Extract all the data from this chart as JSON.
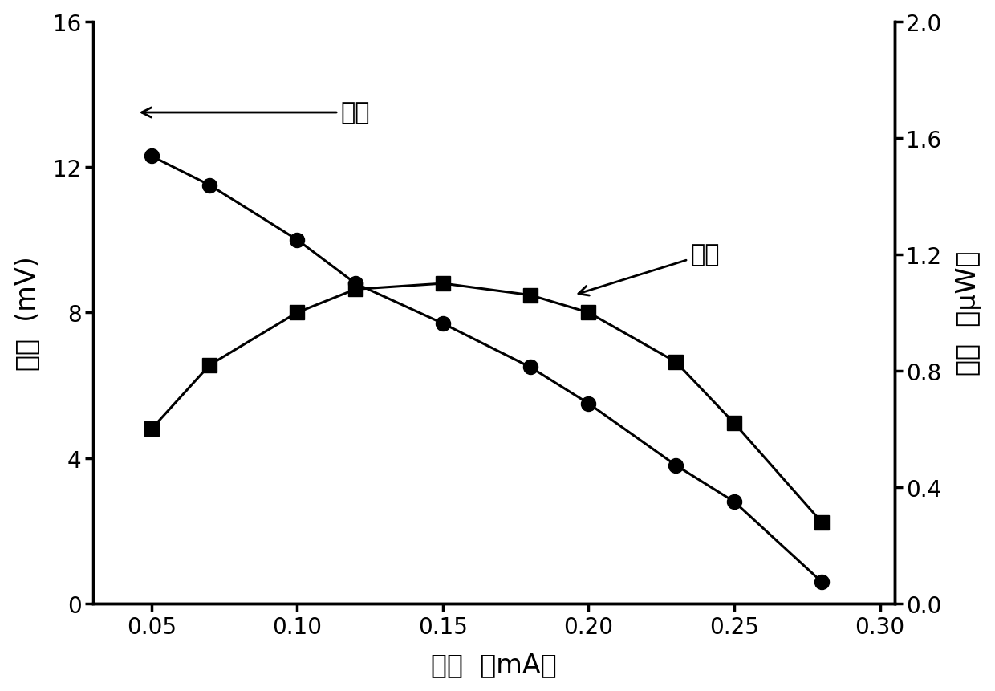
{
  "current_x": [
    0.05,
    0.07,
    0.1,
    0.12,
    0.15,
    0.18,
    0.2,
    0.23,
    0.25,
    0.28
  ],
  "voltage_y": [
    12.3,
    11.5,
    10.0,
    8.8,
    7.7,
    6.5,
    5.5,
    3.8,
    2.8,
    0.6
  ],
  "power_x": [
    0.05,
    0.07,
    0.1,
    0.12,
    0.15,
    0.18,
    0.2,
    0.23,
    0.25,
    0.28
  ],
  "power_y": [
    0.6,
    0.82,
    1.0,
    1.08,
    1.1,
    1.06,
    1.0,
    0.83,
    0.62,
    0.28
  ],
  "xlabel": "电流  （mA）",
  "ylabel_left": "电压  (mV)",
  "ylabel_right": "功率  （μW）",
  "xlim": [
    0.03,
    0.305
  ],
  "xticks": [
    0.05,
    0.1,
    0.15,
    0.2,
    0.25,
    0.3
  ],
  "ylim_left": [
    0,
    16
  ],
  "yticks_left": [
    0,
    4,
    8,
    12,
    16
  ],
  "ylim_right": [
    0.0,
    2.0
  ],
  "yticks_right": [
    0.0,
    0.4,
    0.8,
    1.2,
    1.6,
    2.0
  ],
  "annotation_voltage": "电压",
  "annotation_power": "功率",
  "line_color": "#000000",
  "marker_circle": "o",
  "marker_square": "s",
  "markersize": 13,
  "linewidth": 2.2,
  "font_size_label": 24,
  "font_size_tick": 20,
  "font_size_annot": 22,
  "background_color": "#ffffff"
}
